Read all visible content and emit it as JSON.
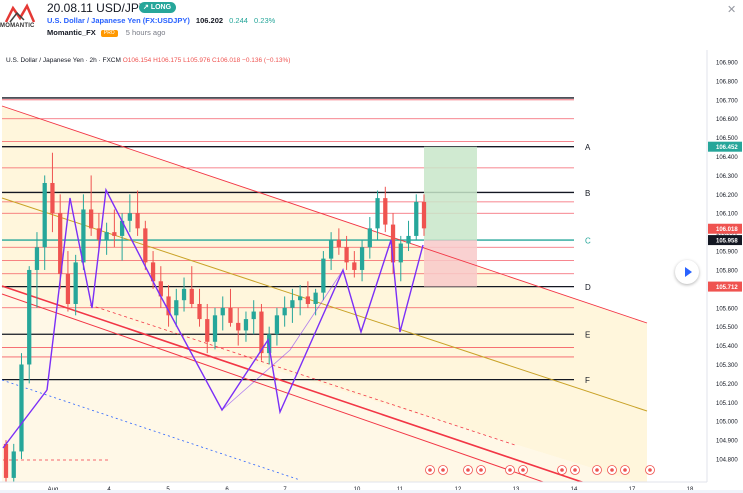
{
  "header": {
    "title": "20.08.11 USD/JPY",
    "badge": "LONG",
    "symbol_name": "U.S. Dollar / Japanese Yen (FX:USDJPY)",
    "price": "106.202",
    "change": "0.244",
    "change_pct": "0.23%",
    "author": "Momantic_FX",
    "author_badge": "PRO",
    "time_ago": "5 hours ago",
    "logo_text": "MOMANTIC"
  },
  "legend": {
    "symbol": "U.S. Dollar / Japanese Yen · 2h · FXCM",
    "o": "O106.154",
    "h": "H106.175",
    "l": "L105.976",
    "c": "C106.018",
    "chg": "−0.136 (−0.13%)"
  },
  "chart_data": {
    "type": "candlestick",
    "y_ticks": [
      "106.900",
      "106.800",
      "106.700",
      "106.600",
      "106.500",
      "106.400",
      "106.300",
      "106.200",
      "106.100",
      "106.000",
      "105.900",
      "105.800",
      "105.700",
      "105.600",
      "105.500",
      "105.400",
      "105.300",
      "105.200",
      "105.100",
      "105.000",
      "104.900",
      "104.800"
    ],
    "x_ticks": [
      "Aug",
      "4",
      "5",
      "6",
      "7",
      "10",
      "11",
      "12",
      "13",
      "14",
      "17",
      "18"
    ],
    "price_labels": [
      {
        "value": "106.452",
        "color": "#26a69a"
      },
      {
        "value": "106.018",
        "color": "#ef5350"
      },
      {
        "value": "105.958",
        "color": "#131722"
      },
      {
        "value": "105.712",
        "color": "#ef5350"
      }
    ],
    "levels": [
      {
        "label": "A",
        "value": 106.452,
        "color": "#131722"
      },
      {
        "label": "B",
        "value": 106.21,
        "color": "#131722"
      },
      {
        "label": "C",
        "value": 105.958,
        "color": "#26a69a"
      },
      {
        "label": "D",
        "value": 105.712,
        "color": "#131722"
      },
      {
        "label": "E",
        "value": 105.46,
        "color": "#131722"
      },
      {
        "label": "F",
        "value": 105.22,
        "color": "#131722"
      }
    ],
    "extra_levels": [
      106.7,
      106.6,
      106.48,
      106.34,
      106.16,
      106.1,
      105.92,
      105.85,
      105.78,
      105.6,
      105.39,
      105.34
    ],
    "candles": [
      [
        104.88,
        104.9,
        104.66,
        104.7
      ],
      [
        104.7,
        104.88,
        104.6,
        104.84
      ],
      [
        104.84,
        105.36,
        104.8,
        105.3
      ],
      [
        105.3,
        105.82,
        105.2,
        105.8
      ],
      [
        105.8,
        106.0,
        105.6,
        105.92
      ],
      [
        105.92,
        106.3,
        105.8,
        106.26
      ],
      [
        106.26,
        106.42,
        106.0,
        106.1
      ],
      [
        106.1,
        106.2,
        105.7,
        105.78
      ],
      [
        105.78,
        105.9,
        105.58,
        105.62
      ],
      [
        105.62,
        105.88,
        105.56,
        105.84
      ],
      [
        105.84,
        106.2,
        105.8,
        106.12
      ],
      [
        106.12,
        106.3,
        105.98,
        106.02
      ],
      [
        106.02,
        106.1,
        105.9,
        105.96
      ],
      [
        105.96,
        106.05,
        105.88,
        106.0
      ],
      [
        106.0,
        106.12,
        105.92,
        105.98
      ],
      [
        105.98,
        106.1,
        105.85,
        106.06
      ],
      [
        106.06,
        106.2,
        106.0,
        106.1
      ],
      [
        106.1,
        106.22,
        105.98,
        106.02
      ],
      [
        106.02,
        106.06,
        105.8,
        105.84
      ],
      [
        105.84,
        105.9,
        105.7,
        105.74
      ],
      [
        105.74,
        105.82,
        105.6,
        105.66
      ],
      [
        105.66,
        105.72,
        105.5,
        105.56
      ],
      [
        105.56,
        105.7,
        105.5,
        105.64
      ],
      [
        105.64,
        105.76,
        105.58,
        105.7
      ],
      [
        105.7,
        105.82,
        105.6,
        105.62
      ],
      [
        105.62,
        105.7,
        105.5,
        105.54
      ],
      [
        105.54,
        105.62,
        105.36,
        105.42
      ],
      [
        105.42,
        105.6,
        105.38,
        105.56
      ],
      [
        105.56,
        105.66,
        105.48,
        105.6
      ],
      [
        105.6,
        105.7,
        105.5,
        105.52
      ],
      [
        105.52,
        105.6,
        105.4,
        105.48
      ],
      [
        105.48,
        105.58,
        105.42,
        105.54
      ],
      [
        105.54,
        105.64,
        105.46,
        105.58
      ],
      [
        105.58,
        105.62,
        105.32,
        105.36
      ],
      [
        105.36,
        105.5,
        105.3,
        105.46
      ],
      [
        105.46,
        105.6,
        105.4,
        105.56
      ],
      [
        105.56,
        105.66,
        105.5,
        105.6
      ],
      [
        105.6,
        105.7,
        105.52,
        105.64
      ],
      [
        105.64,
        105.72,
        105.56,
        105.66
      ],
      [
        105.66,
        105.74,
        105.6,
        105.62
      ],
      [
        105.62,
        105.7,
        105.56,
        105.68
      ],
      [
        105.68,
        105.9,
        105.64,
        105.86
      ],
      [
        105.86,
        106.0,
        105.8,
        105.96
      ],
      [
        105.96,
        106.02,
        105.88,
        105.92
      ],
      [
        105.92,
        105.98,
        105.8,
        105.84
      ],
      [
        105.84,
        105.9,
        105.76,
        105.8
      ],
      [
        105.8,
        105.96,
        105.74,
        105.92
      ],
      [
        105.92,
        106.08,
        105.86,
        106.02
      ],
      [
        106.02,
        106.22,
        105.96,
        106.18
      ],
      [
        106.18,
        106.24,
        106.0,
        106.04
      ],
      [
        106.04,
        106.1,
        105.78,
        105.84
      ],
      [
        105.84,
        105.98,
        105.74,
        105.94
      ],
      [
        105.94,
        106.06,
        105.9,
        105.98
      ],
      [
        105.98,
        106.2,
        105.96,
        106.16
      ],
      [
        106.16,
        106.2,
        105.98,
        106.02
      ]
    ]
  },
  "icons": {
    "play": "play-icon",
    "close": "close-icon"
  }
}
